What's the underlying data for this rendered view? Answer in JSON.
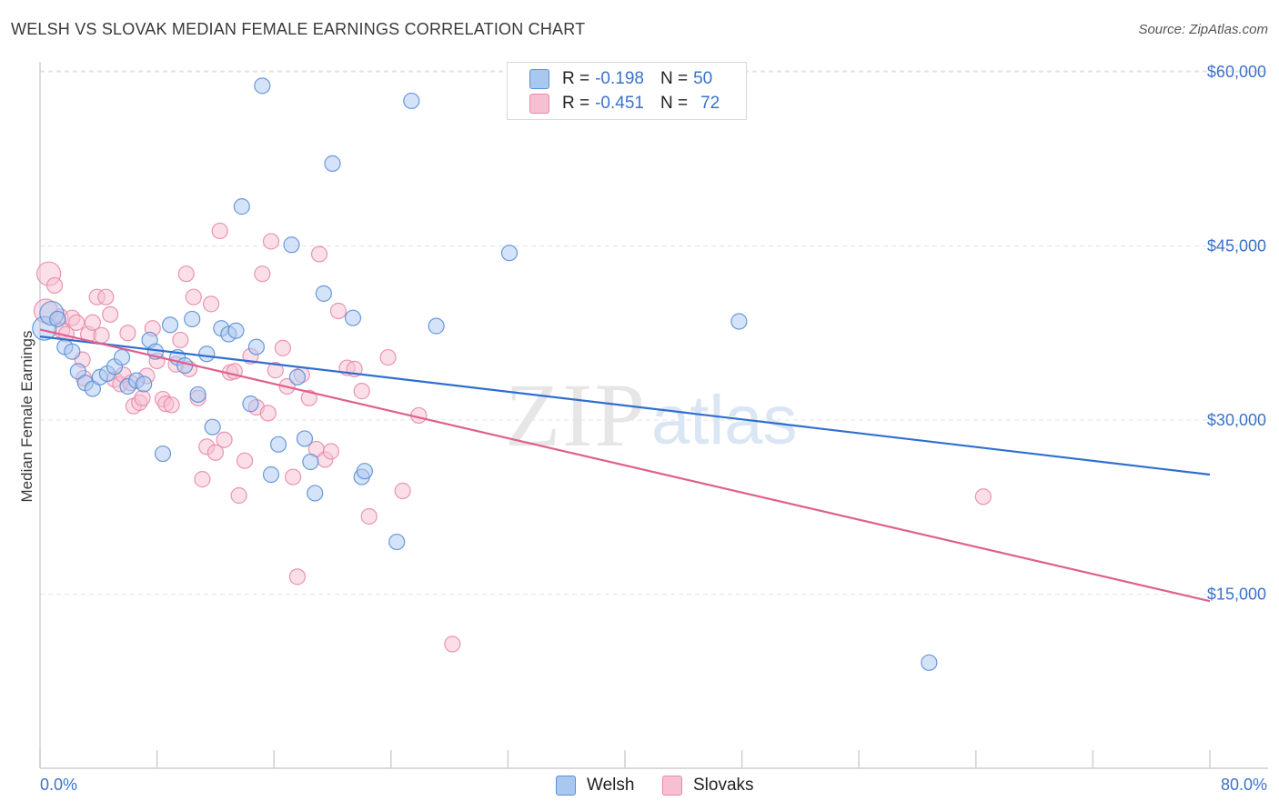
{
  "header": {
    "title": "WELSH VS SLOVAK MEDIAN FEMALE EARNINGS CORRELATION CHART",
    "source": "Source: ZipAtlas.com"
  },
  "legend": {
    "welsh": {
      "r_label": "R =",
      "r_value": "-0.198",
      "n_label": "N =",
      "n_value": "50"
    },
    "slovaks": {
      "r_label": "R =",
      "r_value": "-0.451",
      "n_label": "N =",
      "n_value": "72"
    }
  },
  "watermark": {
    "zip": "ZIP",
    "atlas": "atlas"
  },
  "colors": {
    "welsh_fill": "#a9c8f0",
    "welsh_stroke": "#5b8fd6",
    "welsh_line": "#2f6fcf",
    "slovaks_fill": "#f7bfd2",
    "slovaks_stroke": "#e88aab",
    "slovaks_line": "#e0608c",
    "axis_text": "#3b73c9",
    "grid": "#e3e3e3"
  },
  "chart_data": {
    "type": "scatter",
    "title": "WELSH VS SLOVAK MEDIAN FEMALE EARNINGS CORRELATION CHART",
    "xlabel": "",
    "ylabel": "Median Female Earnings",
    "xlim": [
      0,
      80
    ],
    "ylim": [
      0,
      62000
    ],
    "x_tick_labels": [
      "0.0%",
      "80.0%"
    ],
    "y_ticks": [
      15000,
      30000,
      45000,
      60000
    ],
    "y_tick_labels": [
      "$15,000",
      "$30,000",
      "$45,000",
      "$60,000"
    ],
    "grid": true,
    "legend_position": "bottom-center",
    "series": [
      {
        "name": "Welsh",
        "r": -0.198,
        "n": 50,
        "trend": {
          "x": [
            0,
            80
          ],
          "y": [
            37200,
            25300
          ]
        },
        "points": [
          [
            0.3,
            37900
          ],
          [
            0.8,
            39200
          ],
          [
            1.2,
            38700
          ],
          [
            1.7,
            36300
          ],
          [
            2.2,
            35900
          ],
          [
            2.6,
            34200
          ],
          [
            3.1,
            33200
          ],
          [
            3.6,
            32700
          ],
          [
            4.1,
            33700
          ],
          [
            4.6,
            34000
          ],
          [
            5.1,
            34600
          ],
          [
            5.6,
            35400
          ],
          [
            6.0,
            32900
          ],
          [
            6.6,
            33400
          ],
          [
            7.1,
            33100
          ],
          [
            7.5,
            36900
          ],
          [
            7.9,
            35900
          ],
          [
            8.4,
            27100
          ],
          [
            8.9,
            38200
          ],
          [
            9.4,
            35400
          ],
          [
            9.9,
            34700
          ],
          [
            10.4,
            38700
          ],
          [
            10.8,
            32200
          ],
          [
            11.4,
            35700
          ],
          [
            11.8,
            29400
          ],
          [
            12.4,
            37900
          ],
          [
            12.9,
            37400
          ],
          [
            13.4,
            37700
          ],
          [
            13.8,
            48400
          ],
          [
            14.4,
            31400
          ],
          [
            14.8,
            36300
          ],
          [
            15.2,
            58800
          ],
          [
            15.8,
            25300
          ],
          [
            16.3,
            27900
          ],
          [
            17.2,
            45100
          ],
          [
            17.6,
            33700
          ],
          [
            18.1,
            28400
          ],
          [
            18.5,
            26400
          ],
          [
            18.8,
            23700
          ],
          [
            19.4,
            40900
          ],
          [
            20.0,
            52100
          ],
          [
            21.4,
            38800
          ],
          [
            22.0,
            25100
          ],
          [
            22.2,
            25600
          ],
          [
            24.4,
            19500
          ],
          [
            25.4,
            57500
          ],
          [
            27.1,
            38100
          ],
          [
            32.1,
            44400
          ],
          [
            47.8,
            38500
          ],
          [
            60.8,
            9100
          ]
        ]
      },
      {
        "name": "Slovaks",
        "r": -0.451,
        "n": 72,
        "trend": {
          "x": [
            0,
            80
          ],
          "y": [
            37800,
            14400
          ]
        },
        "points": [
          [
            0.4,
            39400
          ],
          [
            0.6,
            42600
          ],
          [
            1.0,
            41600
          ],
          [
            1.4,
            38900
          ],
          [
            1.5,
            37700
          ],
          [
            1.8,
            37400
          ],
          [
            2.2,
            38800
          ],
          [
            2.5,
            38400
          ],
          [
            2.9,
            35200
          ],
          [
            3.0,
            33600
          ],
          [
            3.3,
            37400
          ],
          [
            3.6,
            38400
          ],
          [
            3.9,
            40600
          ],
          [
            4.2,
            37300
          ],
          [
            4.5,
            40600
          ],
          [
            4.8,
            39100
          ],
          [
            5.1,
            33500
          ],
          [
            5.5,
            33100
          ],
          [
            5.7,
            33900
          ],
          [
            6.0,
            37500
          ],
          [
            6.2,
            33200
          ],
          [
            6.4,
            31200
          ],
          [
            6.8,
            31500
          ],
          [
            7.0,
            31900
          ],
          [
            7.3,
            33800
          ],
          [
            7.7,
            37900
          ],
          [
            8.0,
            35100
          ],
          [
            8.4,
            31800
          ],
          [
            8.6,
            31400
          ],
          [
            9.0,
            31300
          ],
          [
            9.3,
            34800
          ],
          [
            9.6,
            36900
          ],
          [
            10.0,
            42600
          ],
          [
            10.2,
            34400
          ],
          [
            10.5,
            40600
          ],
          [
            10.8,
            31900
          ],
          [
            11.1,
            24900
          ],
          [
            11.4,
            27700
          ],
          [
            11.7,
            40000
          ],
          [
            12.0,
            27200
          ],
          [
            12.3,
            46300
          ],
          [
            12.6,
            28300
          ],
          [
            13.0,
            34100
          ],
          [
            13.3,
            34200
          ],
          [
            13.6,
            23500
          ],
          [
            14.0,
            26500
          ],
          [
            14.4,
            35500
          ],
          [
            14.8,
            31100
          ],
          [
            15.2,
            42600
          ],
          [
            15.6,
            30600
          ],
          [
            15.8,
            45400
          ],
          [
            16.1,
            34300
          ],
          [
            16.6,
            36200
          ],
          [
            16.9,
            32900
          ],
          [
            17.3,
            25100
          ],
          [
            17.6,
            16500
          ],
          [
            17.9,
            33900
          ],
          [
            18.4,
            31900
          ],
          [
            18.9,
            27500
          ],
          [
            19.1,
            44300
          ],
          [
            19.5,
            26600
          ],
          [
            19.9,
            27300
          ],
          [
            20.4,
            39400
          ],
          [
            21.0,
            34500
          ],
          [
            21.5,
            34400
          ],
          [
            22.0,
            32500
          ],
          [
            22.5,
            21700
          ],
          [
            23.8,
            35400
          ],
          [
            24.8,
            23900
          ],
          [
            25.9,
            30400
          ],
          [
            28.2,
            10700
          ],
          [
            64.5,
            23400
          ]
        ]
      }
    ]
  }
}
